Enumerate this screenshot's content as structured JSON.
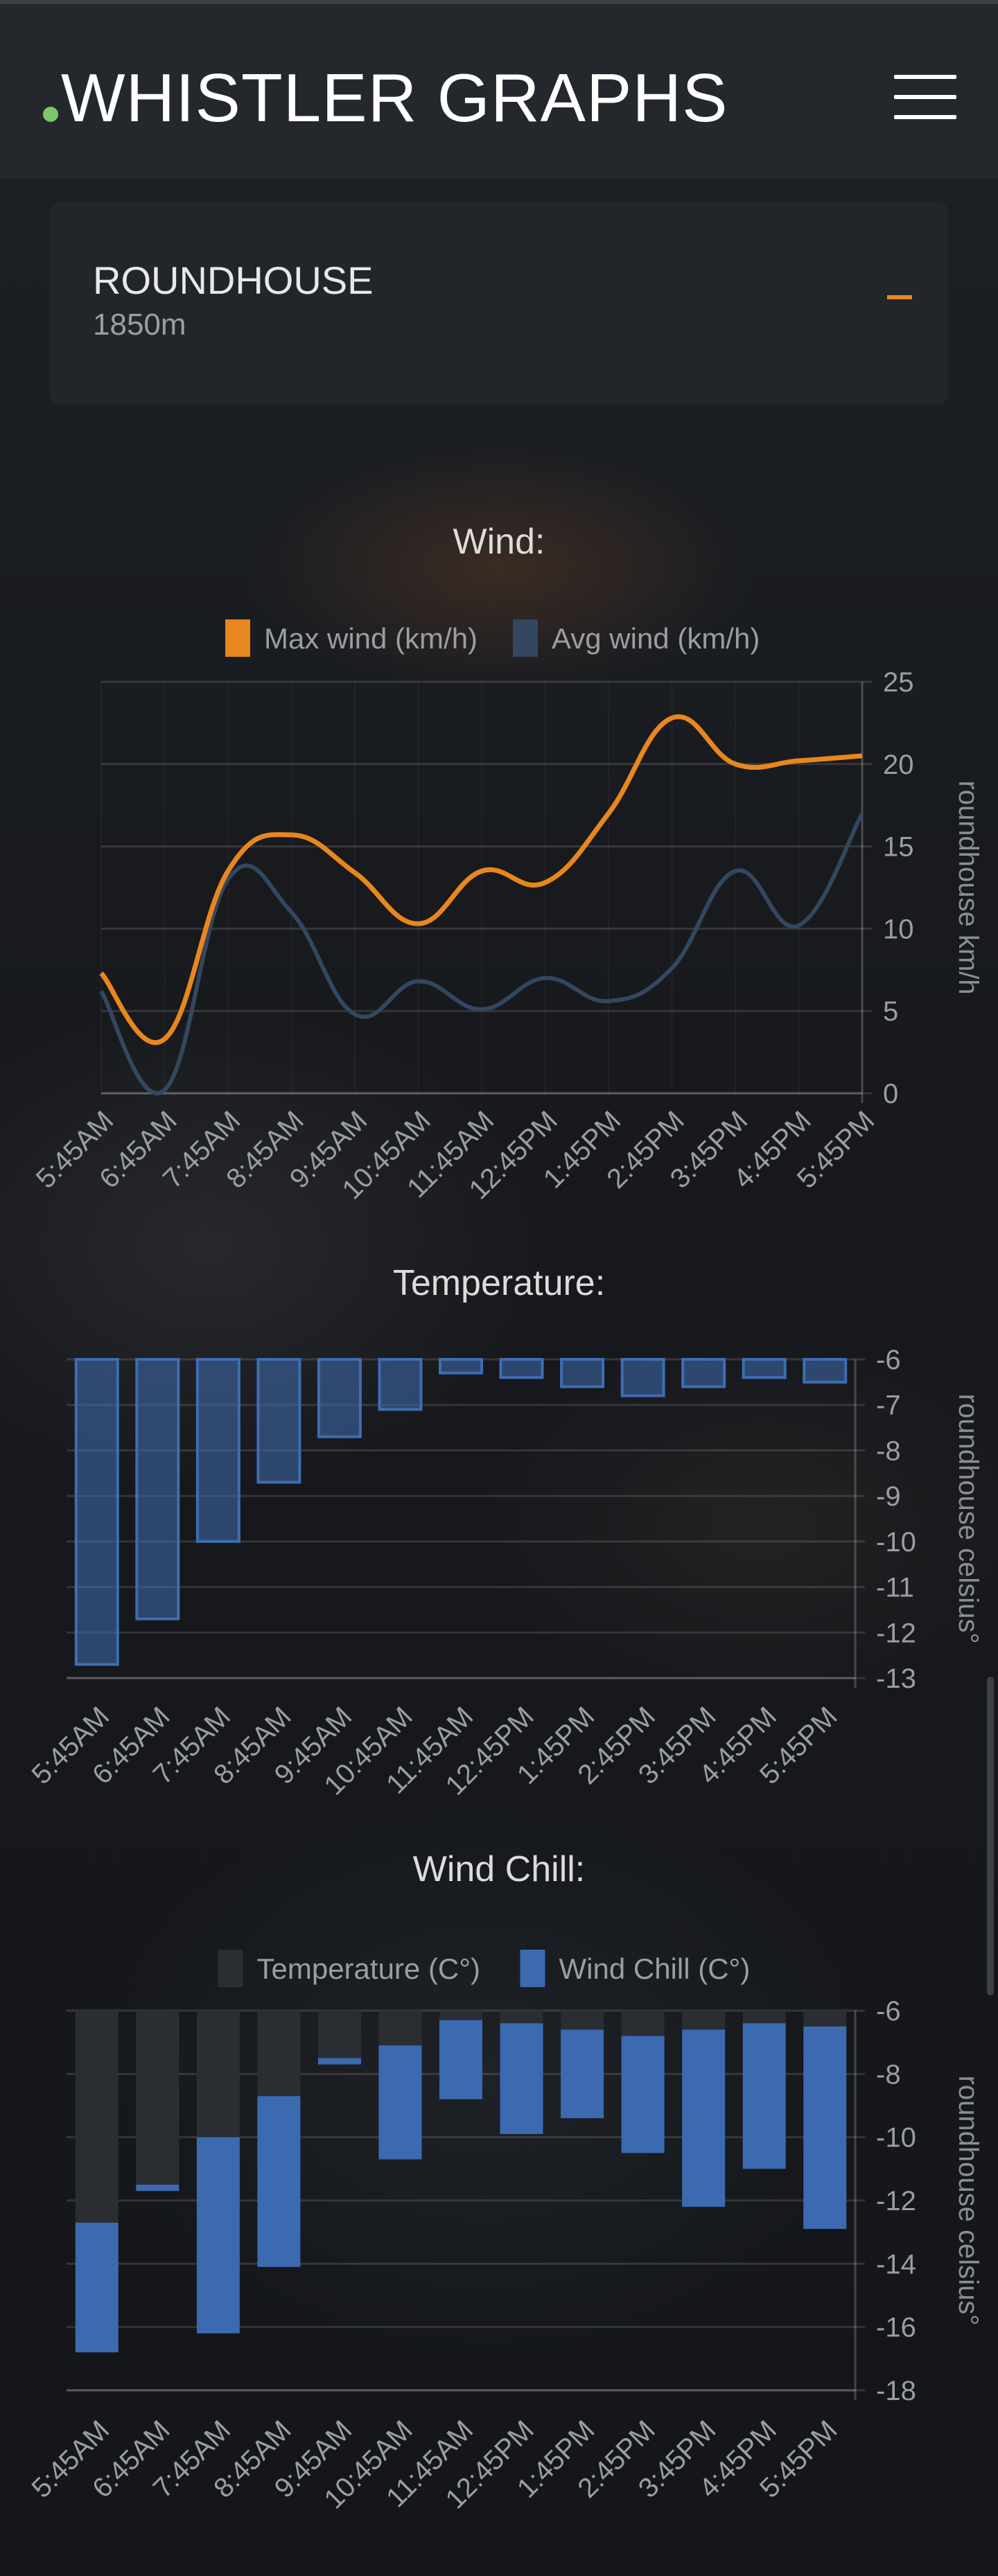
{
  "app": {
    "title": "WHISTLER GRAPHS"
  },
  "station": {
    "name": "ROUNDHOUSE",
    "elevation": "1850m"
  },
  "colors": {
    "max_wind": "#e8871e",
    "avg_wind": "#33475f",
    "temperature_bar": "#3f6db3",
    "temperature_plain": "#2a2e33",
    "wind_chill": "#3b6ab1",
    "accent_green": "#7dc56e"
  },
  "icons": {
    "menu": "hamburger-icon",
    "collapse": "minus-icon"
  },
  "chart_data": [
    {
      "type": "line",
      "title": "Wind:",
      "ylabel": "roundhouse km/h",
      "ylim": [
        0,
        25
      ],
      "yticks": [
        0,
        5,
        10,
        15,
        20,
        25
      ],
      "y_axis_position": "right",
      "legend_position": "top-center",
      "grid": true,
      "x": [
        "5:45AM",
        "6:45AM",
        "7:45AM",
        "8:45AM",
        "9:45AM",
        "10:45AM",
        "11:45AM",
        "12:45PM",
        "1:45PM",
        "2:45PM",
        "3:45PM",
        "4:45PM",
        "5:45PM"
      ],
      "series": [
        {
          "name": "Max wind (km/h)",
          "color": "#e8871e",
          "values": [
            7.3,
            3.3,
            13.5,
            15.7,
            13.4,
            10.3,
            13.5,
            12.8,
            17.0,
            22.8,
            20.0,
            20.2,
            20.5
          ]
        },
        {
          "name": "Avg wind (km/h)",
          "color": "#33475f",
          "values": [
            6.2,
            0.2,
            13.0,
            11.0,
            4.8,
            6.8,
            5.1,
            7.0,
            5.6,
            7.6,
            13.5,
            10.2,
            17.0
          ]
        }
      ]
    },
    {
      "type": "bar",
      "title": "Temperature:",
      "ylabel": "roundhouse celsius°",
      "ylim": [
        -13,
        -6
      ],
      "yticks": [
        -6,
        -7,
        -8,
        -9,
        -10,
        -11,
        -12,
        -13
      ],
      "y_axis_position": "right",
      "grid": true,
      "categories": [
        "5:45AM",
        "6:45AM",
        "7:45AM",
        "8:45AM",
        "9:45AM",
        "10:45AM",
        "11:45AM",
        "12:45PM",
        "1:45PM",
        "2:45PM",
        "3:45PM",
        "4:45PM",
        "5:45PM"
      ],
      "series": [
        {
          "name": "Temperature",
          "color": "#3f6db3",
          "values": [
            -12.7,
            -11.7,
            -10.0,
            -8.7,
            -7.7,
            -7.1,
            -6.3,
            -6.4,
            -6.6,
            -6.8,
            -6.6,
            -6.4,
            -6.5
          ]
        }
      ]
    },
    {
      "type": "bar",
      "title": "Wind Chill:",
      "ylabel": "roundhouse celsius°",
      "ylim": [
        -18,
        -6
      ],
      "yticks": [
        -6,
        -8,
        -10,
        -12,
        -14,
        -16,
        -18
      ],
      "y_axis_position": "right",
      "legend_position": "top-center",
      "grid": true,
      "categories": [
        "5:45AM",
        "6:45AM",
        "7:45AM",
        "8:45AM",
        "9:45AM",
        "10:45AM",
        "11:45AM",
        "12:45PM",
        "1:45PM",
        "2:45PM",
        "3:45PM",
        "4:45PM",
        "5:45PM"
      ],
      "series": [
        {
          "name": "Temperature (C°)",
          "color": "#2a2e33",
          "values": [
            -12.7,
            -11.7,
            -10.0,
            -8.7,
            -7.7,
            -7.1,
            -6.3,
            -6.4,
            -6.6,
            -6.8,
            -6.6,
            -6.4,
            -6.5
          ]
        },
        {
          "name": "Wind Chill (C°)",
          "color": "#3b6ab1",
          "values": [
            -16.8,
            -11.5,
            -16.2,
            -14.1,
            -7.5,
            -10.7,
            -8.8,
            -9.9,
            -9.4,
            -10.5,
            -12.2,
            -11.0,
            -12.9
          ]
        }
      ]
    }
  ]
}
